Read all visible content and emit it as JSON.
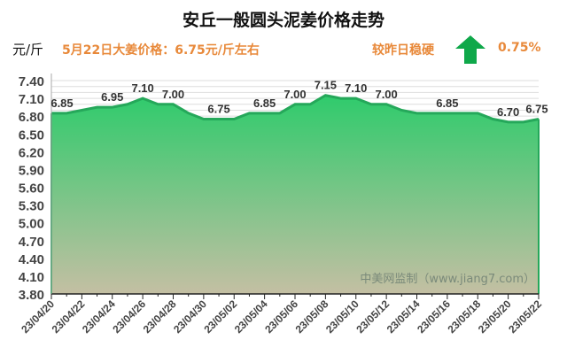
{
  "header": {
    "title": "安丘一般圆头泥姜价格走势",
    "unit": "元/斤",
    "price_info": "5月22日大姜价格：6.75元/斤左右",
    "compare_text": "较昨日稳硬",
    "change_pct": "0.75%",
    "trend_icon": "arrow-up-icon",
    "trend_color": "#0fa84a",
    "text_color": "#e8893a"
  },
  "watermark": "中美网监制（www.jiang7.com）",
  "chart_data": {
    "type": "area",
    "title": "安丘一般圆头泥姜价格走势",
    "ylabel": "元/斤",
    "ylim": [
      3.8,
      7.4
    ],
    "yticks": [
      "3.80",
      "4.10",
      "4.40",
      "4.70",
      "5.00",
      "5.30",
      "5.60",
      "5.90",
      "6.20",
      "6.50",
      "6.80",
      "7.10",
      "7.40"
    ],
    "xticks": [
      "23/04/20",
      "23/04/22",
      "23/04/24",
      "23/04/26",
      "23/04/28",
      "23/04/30",
      "23/05/02",
      "23/05/04",
      "23/05/06",
      "23/05/08",
      "23/05/10",
      "23/05/12",
      "23/05/14",
      "23/05/16",
      "23/05/18",
      "23/05/20",
      "23/05/22"
    ],
    "x": [
      "23/04/20",
      "23/04/21",
      "23/04/22",
      "23/04/23",
      "23/04/24",
      "23/04/25",
      "23/04/26",
      "23/04/27",
      "23/04/28",
      "23/04/29",
      "23/04/30",
      "23/05/01",
      "23/05/02",
      "23/05/03",
      "23/05/04",
      "23/05/05",
      "23/05/06",
      "23/05/07",
      "23/05/08",
      "23/05/09",
      "23/05/10",
      "23/05/11",
      "23/05/12",
      "23/05/13",
      "23/05/14",
      "23/05/15",
      "23/05/16",
      "23/05/17",
      "23/05/18",
      "23/05/19",
      "23/05/20",
      "23/05/21",
      "23/05/22"
    ],
    "values": [
      6.85,
      6.85,
      6.9,
      6.95,
      6.95,
      7.0,
      7.1,
      7.0,
      7.0,
      6.85,
      6.75,
      6.75,
      6.75,
      6.85,
      6.85,
      6.85,
      7.0,
      7.0,
      7.15,
      7.1,
      7.1,
      7.0,
      7.0,
      6.9,
      6.85,
      6.85,
      6.85,
      6.85,
      6.85,
      6.75,
      6.7,
      6.7,
      6.75
    ],
    "data_labels": [
      {
        "x": "23/04/20",
        "label": "6.85"
      },
      {
        "x": "23/04/24",
        "label": "6.95"
      },
      {
        "x": "23/04/26",
        "label": "7.10"
      },
      {
        "x": "23/04/28",
        "label": "7.00"
      },
      {
        "x": "23/05/01",
        "label": "6.75"
      },
      {
        "x": "23/05/04",
        "label": "6.85"
      },
      {
        "x": "23/05/06",
        "label": "7.00"
      },
      {
        "x": "23/05/08",
        "label": "7.15"
      },
      {
        "x": "23/05/10",
        "label": "7.10"
      },
      {
        "x": "23/05/12",
        "label": "7.00"
      },
      {
        "x": "23/05/16",
        "label": "6.85"
      },
      {
        "x": "23/05/20",
        "label": "6.70"
      },
      {
        "x": "23/05/22",
        "label": "6.75"
      }
    ],
    "grid": true,
    "colors": {
      "line": "#25a85a",
      "fill_top": "#2fcb6c",
      "fill_bottom": "#c4bfa3"
    }
  }
}
